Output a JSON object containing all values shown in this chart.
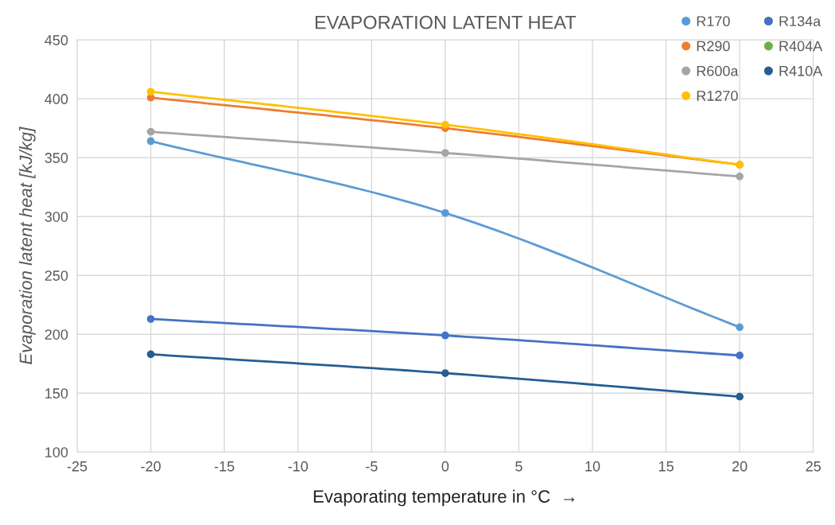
{
  "chart_data": {
    "type": "line",
    "title": "EVAPORATION LATENT HEAT",
    "xlabel": "Evaporating temperature in °C  →",
    "ylabel": "Evaporation latent heat [kJ/kg]",
    "x": [
      -20,
      0,
      20
    ],
    "series": [
      {
        "name": "R170",
        "color": "#5b9bd5",
        "values": [
          364,
          303,
          206
        ]
      },
      {
        "name": "R290",
        "color": "#ed7d31",
        "values": [
          401,
          375,
          344
        ]
      },
      {
        "name": "R600a",
        "color": "#a5a5a5",
        "values": [
          372,
          354,
          334
        ]
      },
      {
        "name": "R1270",
        "color": "#ffc000",
        "values": [
          406,
          378,
          344
        ]
      },
      {
        "name": "R134a",
        "color": "#4472c4",
        "values": [
          213,
          199,
          182
        ]
      },
      {
        "name": "R404A",
        "color": "#70ad47",
        "values": [
          null,
          null,
          null
        ]
      },
      {
        "name": "R410A",
        "color": "#255e91",
        "values": [
          183,
          167,
          147
        ]
      }
    ],
    "xlim": [
      -25,
      25
    ],
    "xticks": [
      -25,
      -20,
      -15,
      -10,
      -5,
      0,
      5,
      10,
      15,
      20,
      25
    ],
    "ylim": [
      100,
      450
    ],
    "yticks": [
      100,
      150,
      200,
      250,
      300,
      350,
      400,
      450
    ],
    "grid": true,
    "legend": "top right",
    "marker": "circle",
    "line_style": "solid"
  }
}
